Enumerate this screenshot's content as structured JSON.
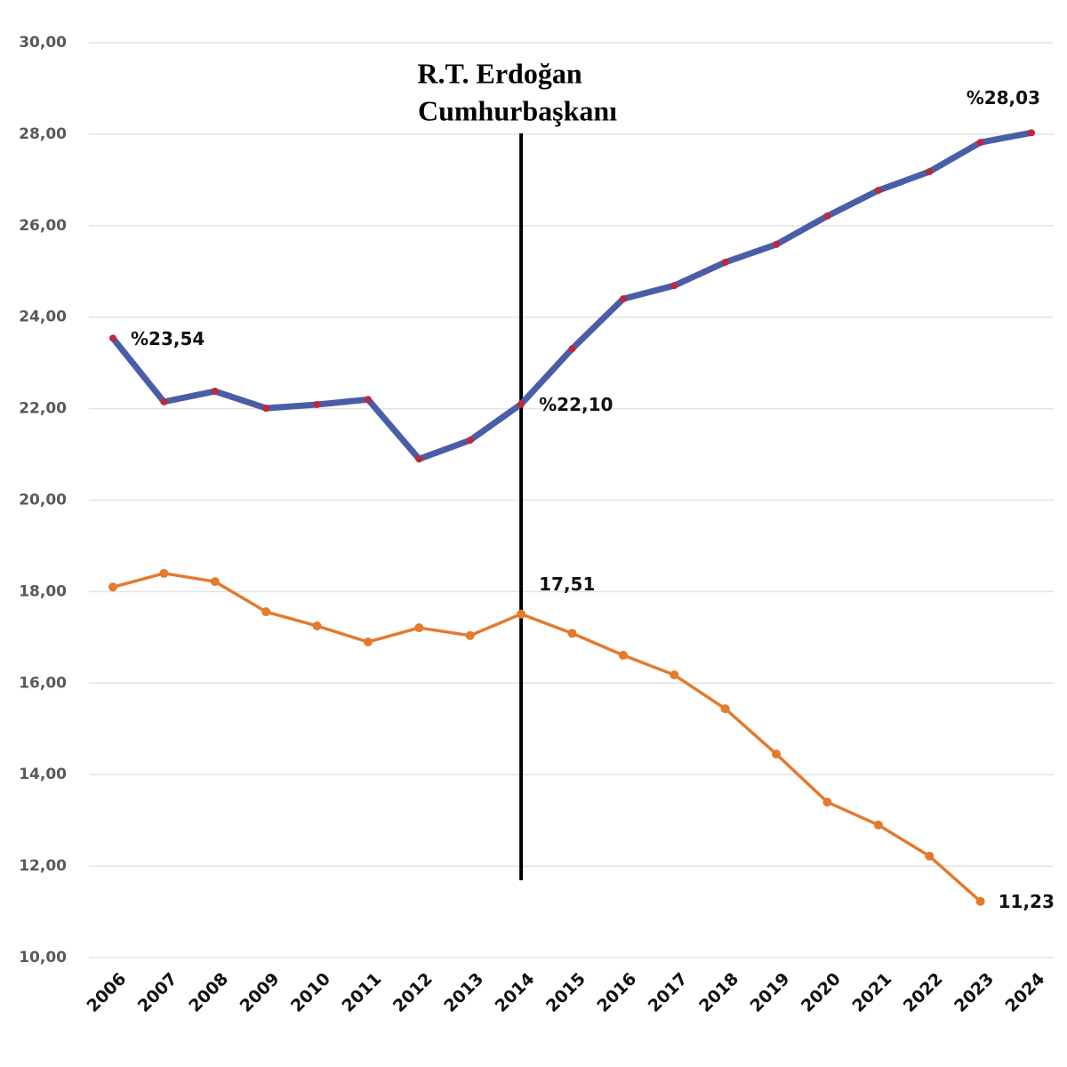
{
  "chart_data": {
    "type": "line",
    "annotation": [
      "R.T. Erdoğan",
      "Cumhurbaşkanı"
    ],
    "categories": [
      "2006",
      "2007",
      "2008",
      "2009",
      "2010",
      "2011",
      "2012",
      "2013",
      "2014",
      "2015",
      "2016",
      "2017",
      "2018",
      "2019",
      "2020",
      "2021",
      "2022",
      "2023",
      "2024"
    ],
    "series": [
      {
        "color": "#4a5ea8",
        "marker_color": "#c0273a",
        "values": [
          23.54,
          22.15,
          22.38,
          22.01,
          22.09,
          22.2,
          20.9,
          21.31,
          22.1,
          23.31,
          24.4,
          24.69,
          25.2,
          25.59,
          26.21,
          26.77,
          27.18,
          27.82,
          28.03
        ],
        "value_labels": [
          "%23,54",
          null,
          null,
          null,
          null,
          null,
          null,
          null,
          "%22,10",
          null,
          null,
          null,
          null,
          null,
          null,
          null,
          null,
          null,
          "%28,03"
        ]
      },
      {
        "color": "#e37a2e",
        "marker_color": "#e37a2e",
        "values": [
          18.1,
          18.4,
          18.22,
          17.56,
          17.25,
          16.9,
          17.21,
          17.04,
          17.51,
          17.09,
          16.61,
          16.18,
          15.44,
          14.45,
          13.4,
          12.9,
          12.22,
          11.23,
          null
        ],
        "value_labels": [
          null,
          null,
          null,
          null,
          null,
          null,
          null,
          null,
          "17,51",
          null,
          null,
          null,
          null,
          null,
          null,
          null,
          null,
          "11,23",
          null
        ]
      }
    ],
    "ylim": [
      10,
      30
    ],
    "yticks": [
      {
        "value": 10,
        "label": "10,00"
      },
      {
        "value": 12,
        "label": "12,00"
      },
      {
        "value": 14,
        "label": "14,00"
      },
      {
        "value": 16,
        "label": "16,00"
      },
      {
        "value": 18,
        "label": "18,00"
      },
      {
        "value": 20,
        "label": "20,00"
      },
      {
        "value": 22,
        "label": "22,00"
      },
      {
        "value": 24,
        "label": "24,00"
      },
      {
        "value": 26,
        "label": "26,00"
      },
      {
        "value": 28,
        "label": "28,00"
      },
      {
        "value": 30,
        "label": "30,00"
      }
    ],
    "grid": true
  }
}
